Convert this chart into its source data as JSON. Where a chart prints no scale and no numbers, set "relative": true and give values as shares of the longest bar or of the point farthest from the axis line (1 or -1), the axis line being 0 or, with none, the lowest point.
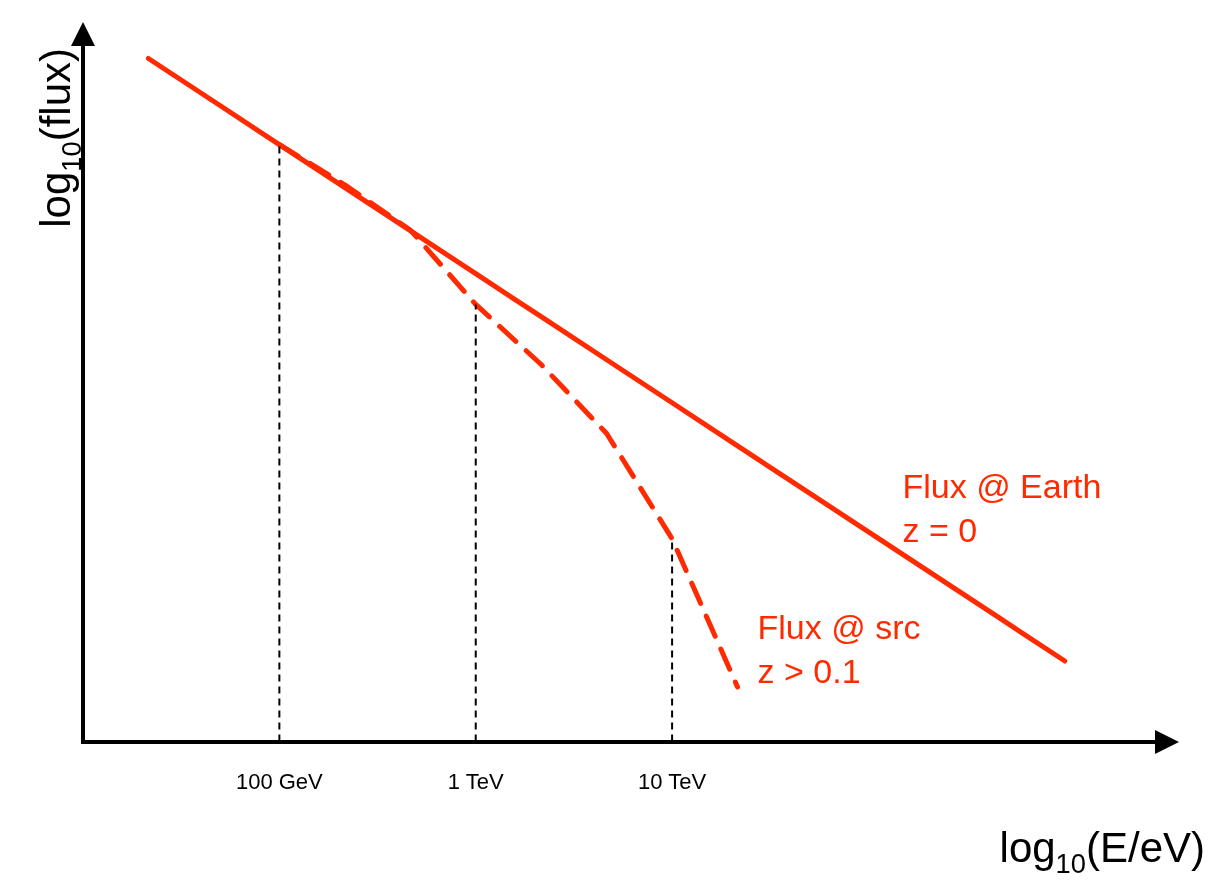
{
  "chart_data": {
    "type": "line",
    "relative": true,
    "xlabel": "log$_{10}$(E/eV)",
    "ylabel": "log$_{10}$(flux)",
    "categories": [
      null,
      null,
      "100 GeV",
      null,
      null,
      "1 TeV",
      null,
      null,
      "10 TeV",
      null,
      null,
      null,
      null,
      null,
      null,
      null
    ],
    "series": [
      {
        "name": "Flux @ Earth",
        "color": "#ff2a00",
        "line_style": "solid",
        "values": [
          1,
          0.937,
          0.874,
          0.811,
          0.748,
          0.685,
          0.622,
          0.559,
          0.496,
          0.433,
          0.37,
          0.307,
          0.244,
          0.181,
          0.118,
          null
        ]
      },
      {
        "name": "Flux @ src",
        "color": "#ff2a00",
        "line_style": "dashed",
        "values": [
          null,
          null,
          0.874,
          0.815,
          0.749,
          0.64,
          0.552,
          0.451,
          0.297,
          0.08,
          null,
          null,
          null,
          null,
          null,
          null
        ]
      }
    ],
    "annotations": [
      "z = 0",
      "z > 0.1"
    ],
    "ref_lines": [
      {
        "axis": "x",
        "value": "100 GeV",
        "color": "#000000",
        "line_style": "dashed"
      },
      {
        "axis": "x",
        "value": "1 TeV",
        "color": "#000000",
        "line_style": "dashed"
      },
      {
        "axis": "x",
        "value": "10 TeV",
        "color": "#000000",
        "line_style": "dashed"
      }
    ],
    "grid": false,
    "legend": false,
    "marker": "none"
  }
}
